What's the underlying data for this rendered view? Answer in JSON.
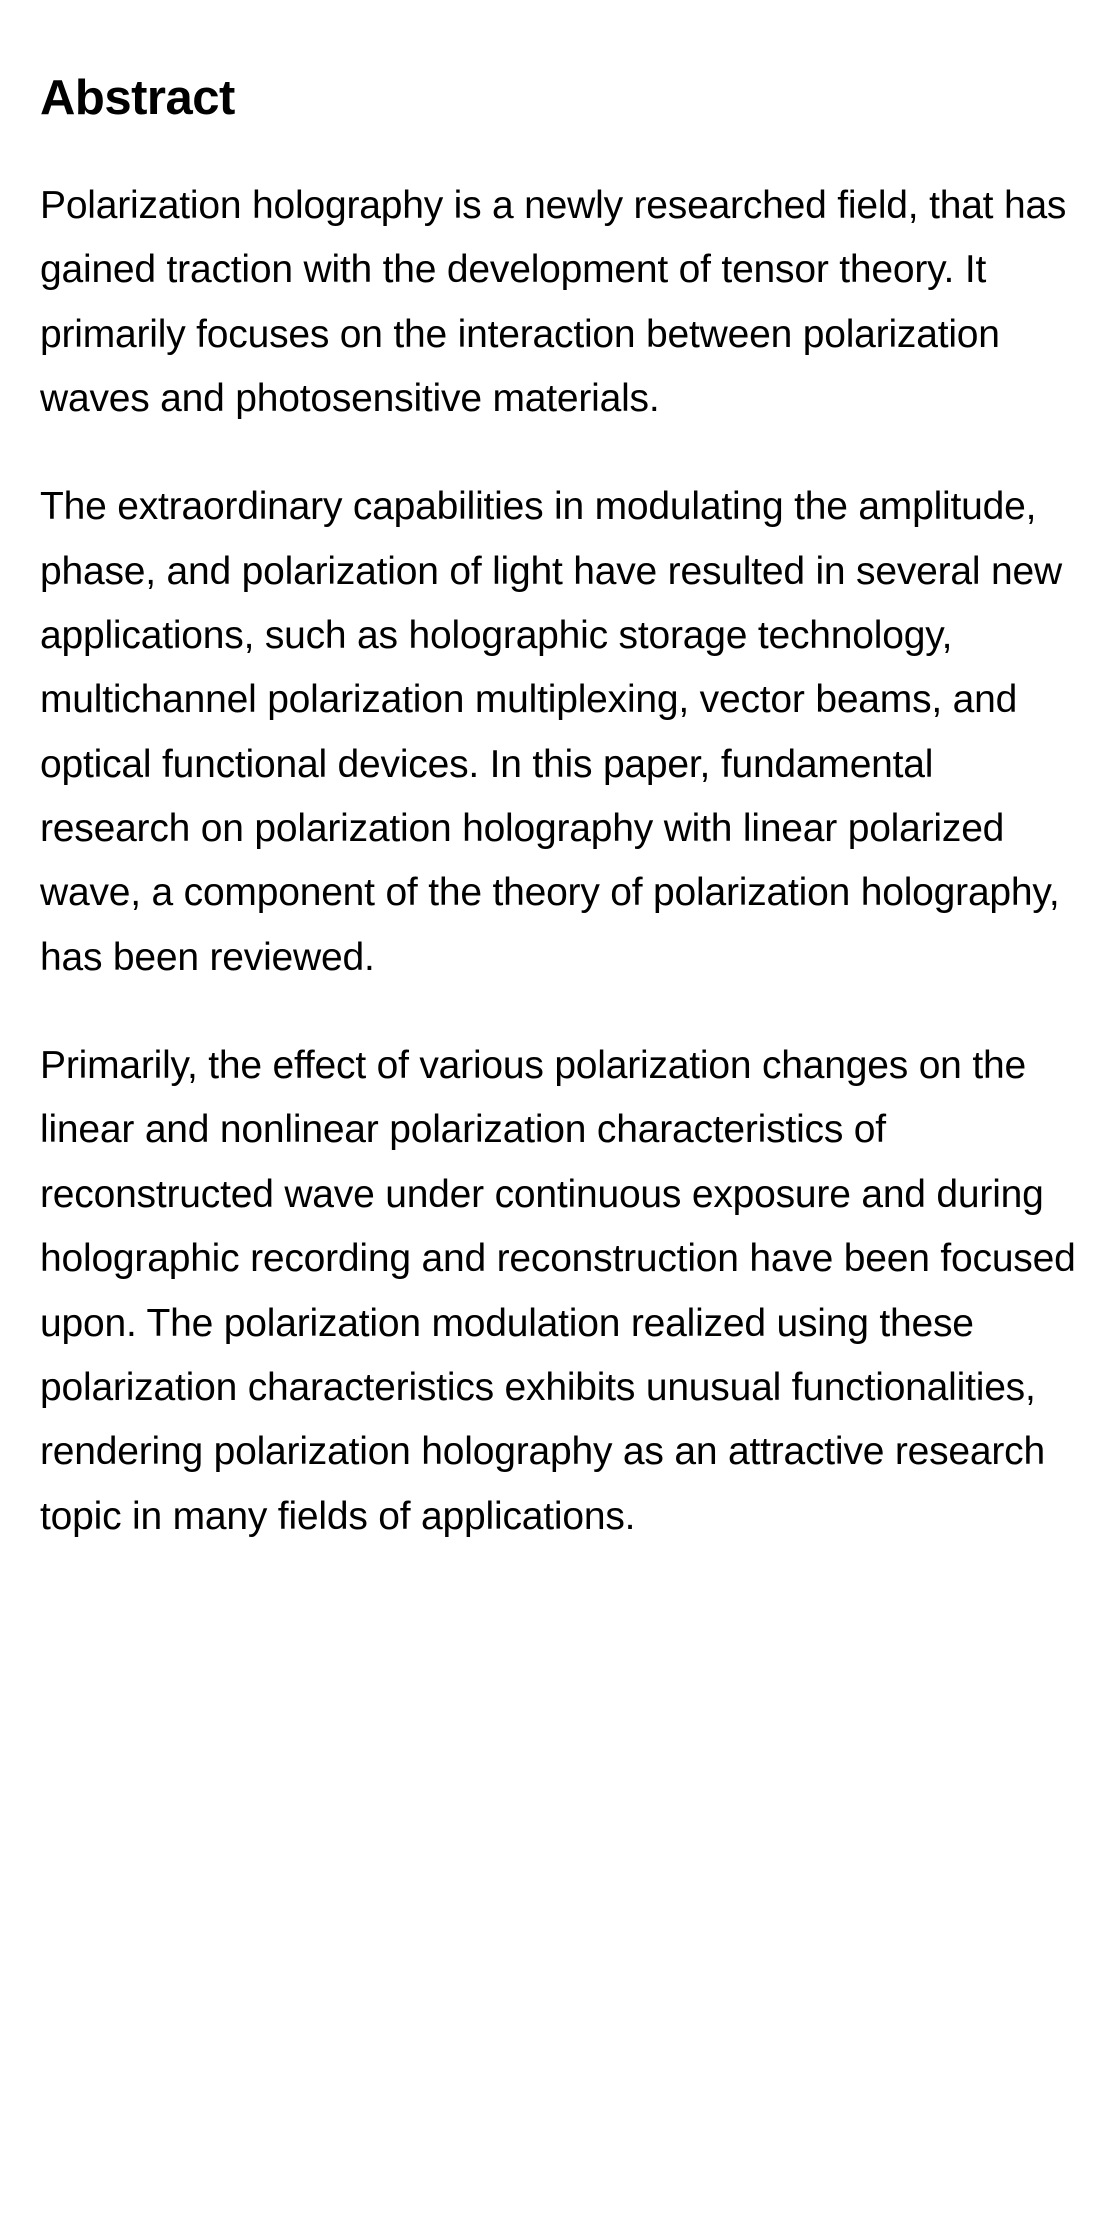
{
  "abstract": {
    "heading": "Abstract",
    "paragraphs": [
      "Polarization holography is a newly researched field, that has gained traction with the development of tensor theory. It primarily focuses on the interaction between polarization waves and photosensitive materials.",
      "The extraordinary capabilities in modulating the amplitude, phase, and polarization of light have resulted in several new applications, such as holographic storage technology, multichannel polarization multiplexing, vector beams, and optical functional devices. In this paper, fundamental research on polarization holography with linear polarized wave, a component of the theory of polarization holography, has been reviewed.",
      "Primarily, the effect of various polarization changes on the linear and nonlinear polarization characteristics of reconstructed wave under continuous exposure and during holographic recording and reconstruction have been focused upon. The polarization modulation realized using these polarization characteristics exhibits unusual functionalities, rendering polarization holography as an attractive research topic in many fields of applications."
    ]
  },
  "styles": {
    "background_color": "#ffffff",
    "text_color": "#000000",
    "heading_fontsize": 49,
    "heading_fontweight": 700,
    "paragraph_fontsize": 39,
    "paragraph_fontweight": 400,
    "paragraph_lineheight": 1.65
  }
}
